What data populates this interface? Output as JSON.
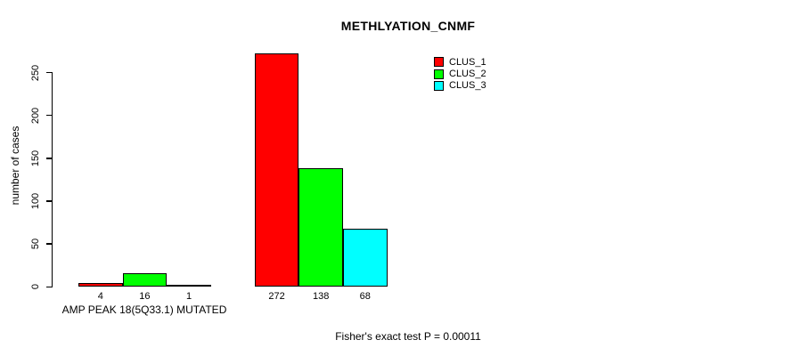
{
  "chart_data": {
    "type": "bar",
    "title": "METHLYATION_CNMF",
    "ylabel": "number of cases",
    "xlabel": "",
    "ylim": [
      0,
      250
    ],
    "yticks": [
      0,
      50,
      100,
      150,
      200,
      250
    ],
    "grid": false,
    "series_names": [
      "CLUS_1",
      "CLUS_2",
      "CLUS_3"
    ],
    "series_colors": [
      "#FF0000",
      "#00FF00",
      "#00FFFF"
    ],
    "groups": [
      {
        "label": "AMP PEAK 18(5Q33.1) MUTATED",
        "values": [
          4,
          16,
          1
        ]
      },
      {
        "label": "",
        "values": [
          272,
          138,
          68
        ]
      }
    ],
    "bar_value_labels": [
      [
        "4",
        "16",
        "1"
      ],
      [
        "272",
        "138",
        "68"
      ]
    ],
    "legend": {
      "position": "top-right",
      "entries": [
        {
          "label": "CLUS_1",
          "color": "#FF0000"
        },
        {
          "label": "CLUS_2",
          "color": "#00FF00"
        },
        {
          "label": "CLUS_3",
          "color": "#00FFFF"
        }
      ]
    },
    "annotation": "Fisher's exact test P = 0.00011"
  }
}
